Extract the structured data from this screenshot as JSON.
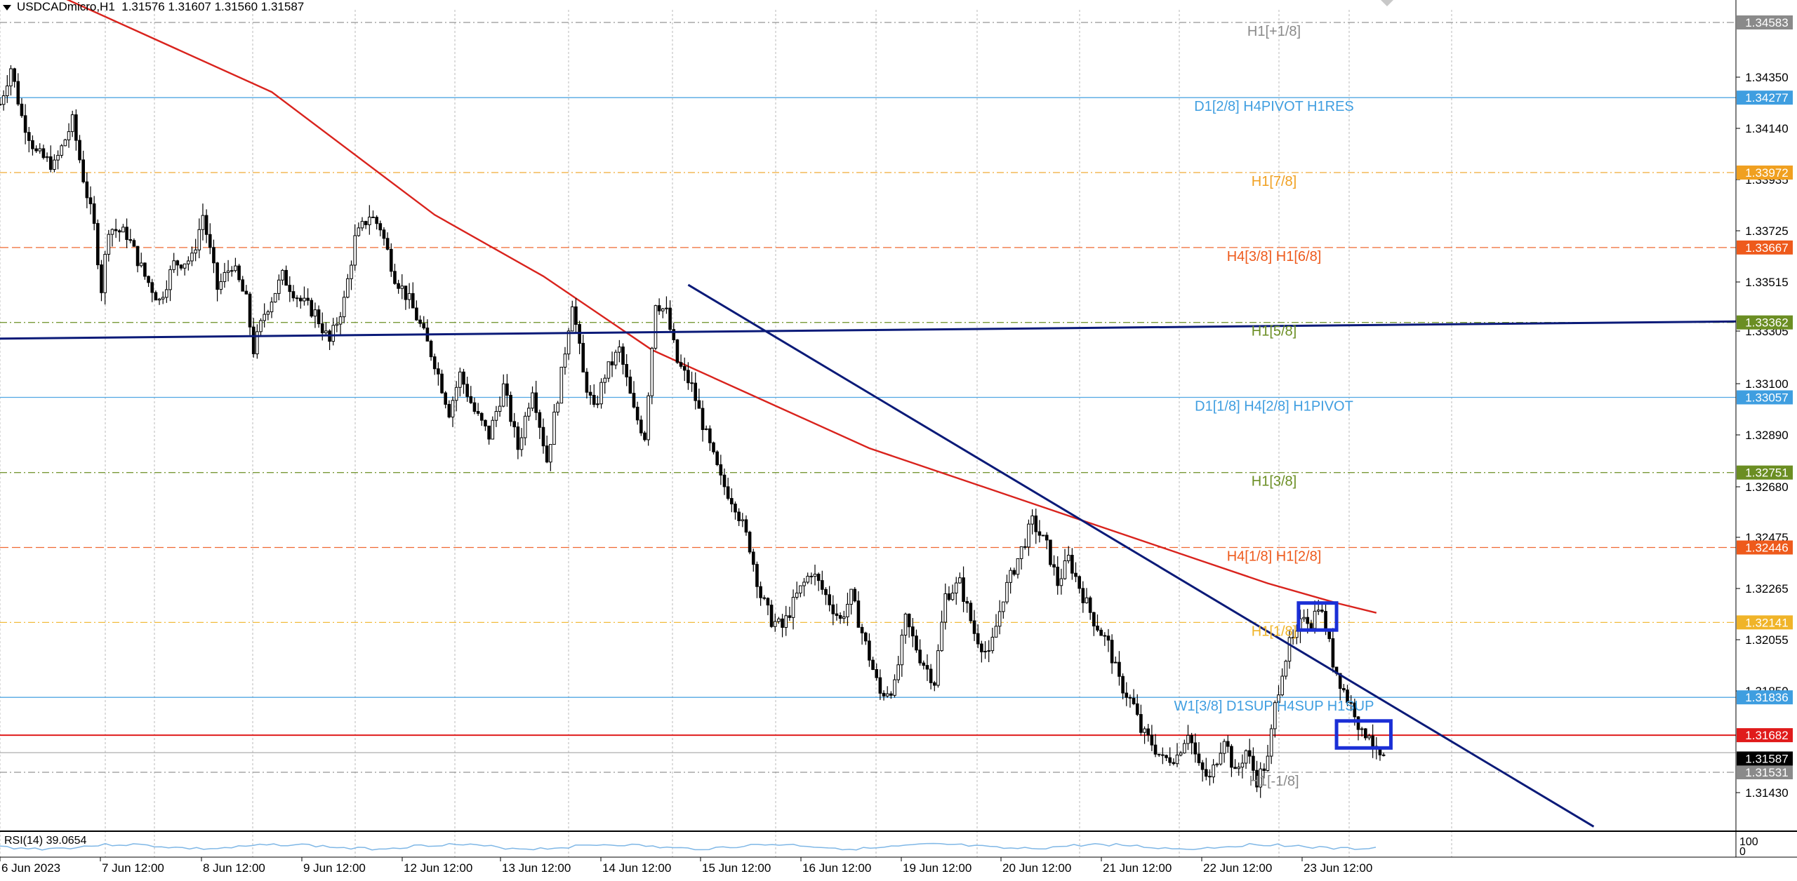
{
  "header": {
    "symbol": "USDCADmicro,H1",
    "ohlc": "1.31576 1.31607 1.31560 1.31587"
  },
  "rsi": {
    "label": "RSI(14) 39.0654",
    "scale_top": "100",
    "scale_bottom": "0"
  },
  "colors": {
    "axis": "#000000",
    "grid": "#b8b8b8",
    "candle": "#000000",
    "ma": "#d9231d",
    "trendline": "#0a1a78",
    "box": "#1b2fd6",
    "support_line": "#e01b1b",
    "rsi_line": "#7fb7e6"
  },
  "chart_data": {
    "type": "candlestick",
    "ylim": [
      1.3131,
      1.3466
    ],
    "price_axis_ticks": [
      "1.34350",
      "1.34140",
      "1.33935",
      "1.33725",
      "1.33515",
      "1.33305",
      "1.33100",
      "1.32890",
      "1.32680",
      "1.32475",
      "1.32265",
      "1.32055",
      "1.31850",
      "1.31430"
    ],
    "time_axis_labels": [
      "6 Jun 2023",
      "7 Jun 12:00",
      "8 Jun 12:00",
      "9 Jun 12:00",
      "12 Jun 12:00",
      "13 Jun 12:00",
      "14 Jun 12:00",
      "15 Jun 12:00",
      "16 Jun 12:00",
      "19 Jun 12:00",
      "20 Jun 12:00",
      "21 Jun 12:00",
      "22 Jun 12:00",
      "23 Jun 12:00"
    ],
    "level_lines": [
      {
        "label": "H1[+1/8]",
        "price": 1.34583,
        "tag": "1.34583",
        "color": "#8a8a8a",
        "style": "dashdot"
      },
      {
        "label": "D1[2/8] H4PIVOT H1RES",
        "price": 1.34277,
        "tag": "1.34277",
        "color": "#3f9ee0",
        "style": "solid"
      },
      {
        "label": "H1[7/8]",
        "price": 1.33972,
        "tag": "1.33972",
        "color": "#f0a020",
        "style": "dashdot"
      },
      {
        "label": "H4[3/8] H1[6/8]",
        "price": 1.33667,
        "tag": "1.33667",
        "color": "#ee5a1c",
        "style": "dash"
      },
      {
        "label": "H1[5/8]",
        "price": 1.33362,
        "tag": "1.33362",
        "color": "#6b8e23",
        "style": "dashdot"
      },
      {
        "label": "D1[1/8] H4[2/8] H1PIVOT",
        "price": 1.33057,
        "tag": "1.33057",
        "color": "#3f9ee0",
        "style": "solid"
      },
      {
        "label": "H1[3/8]",
        "price": 1.32751,
        "tag": "1.32751",
        "color": "#6b8e23",
        "style": "dashdot"
      },
      {
        "label": "H4[1/8] H1[2/8]",
        "price": 1.32446,
        "tag": "1.32446",
        "color": "#ee5a1c",
        "style": "dash"
      },
      {
        "label": "H1[1/8]",
        "price": 1.32141,
        "tag": "1.32141",
        "color": "#f0b429",
        "style": "dashdot"
      },
      {
        "label": "W1[3/8] D1SUP H4SUP H1SUP",
        "price": 1.31836,
        "tag": "1.31836",
        "color": "#3f9ee0",
        "style": "solid"
      },
      {
        "label": "H1[-1/8]",
        "price": 1.31531,
        "tag": "1.31531",
        "color": "#8a8a8a",
        "style": "dashdot"
      }
    ],
    "support_level": {
      "price": 1.31682,
      "tag": "1.31682"
    },
    "current_price": {
      "price": 1.31587,
      "tag": "1.31587"
    },
    "grey_level": 1.31611,
    "candles_close_path": [
      [
        0,
        1.3425
      ],
      [
        6,
        1.344
      ],
      [
        12,
        1.342
      ],
      [
        20,
        1.3405
      ],
      [
        30,
        1.34
      ],
      [
        40,
        1.3418
      ],
      [
        46,
        1.3395
      ],
      [
        52,
        1.3375
      ],
      [
        56,
        1.335
      ],
      [
        60,
        1.3375
      ],
      [
        70,
        1.3372
      ],
      [
        80,
        1.3355
      ],
      [
        88,
        1.3345
      ],
      [
        96,
        1.336
      ],
      [
        106,
        1.3362
      ],
      [
        112,
        1.338
      ],
      [
        120,
        1.335
      ],
      [
        128,
        1.336
      ],
      [
        136,
        1.3345
      ],
      [
        140,
        1.3325
      ],
      [
        146,
        1.334
      ],
      [
        156,
        1.3355
      ],
      [
        166,
        1.3345
      ],
      [
        174,
        1.334
      ],
      [
        182,
        1.3328
      ],
      [
        190,
        1.3345
      ],
      [
        196,
        1.337
      ],
      [
        204,
        1.338
      ],
      [
        210,
        1.3375
      ],
      [
        218,
        1.3355
      ],
      [
        226,
        1.3345
      ],
      [
        232,
        1.3335
      ],
      [
        240,
        1.332
      ],
      [
        248,
        1.33
      ],
      [
        254,
        1.3315
      ],
      [
        262,
        1.33
      ],
      [
        270,
        1.329
      ],
      [
        278,
        1.331
      ],
      [
        286,
        1.3285
      ],
      [
        294,
        1.331
      ],
      [
        302,
        1.328
      ],
      [
        310,
        1.3315
      ],
      [
        316,
        1.3345
      ],
      [
        322,
        1.3315
      ],
      [
        328,
        1.33
      ],
      [
        334,
        1.3315
      ],
      [
        342,
        1.3325
      ],
      [
        350,
        1.33
      ],
      [
        356,
        1.329
      ],
      [
        362,
        1.3345
      ],
      [
        368,
        1.334
      ],
      [
        374,
        1.332
      ],
      [
        382,
        1.331
      ],
      [
        390,
        1.329
      ],
      [
        398,
        1.3272
      ],
      [
        406,
        1.3262
      ],
      [
        414,
        1.3245
      ],
      [
        420,
        1.3225
      ],
      [
        426,
        1.3215
      ],
      [
        432,
        1.3212
      ],
      [
        440,
        1.3225
      ],
      [
        448,
        1.3235
      ],
      [
        456,
        1.3225
      ],
      [
        464,
        1.3215
      ],
      [
        470,
        1.3225
      ],
      [
        478,
        1.3205
      ],
      [
        486,
        1.3185
      ],
      [
        494,
        1.3188
      ],
      [
        500,
        1.3215
      ],
      [
        508,
        1.32
      ],
      [
        516,
        1.319
      ],
      [
        522,
        1.3225
      ],
      [
        530,
        1.323
      ],
      [
        538,
        1.321
      ],
      [
        546,
        1.32
      ],
      [
        554,
        1.3225
      ],
      [
        562,
        1.324
      ],
      [
        570,
        1.3255
      ],
      [
        578,
        1.3245
      ],
      [
        584,
        1.323
      ],
      [
        590,
        1.324
      ],
      [
        598,
        1.3225
      ],
      [
        604,
        1.3215
      ],
      [
        612,
        1.3205
      ],
      [
        618,
        1.319
      ],
      [
        626,
        1.318
      ],
      [
        630,
        1.317
      ],
      [
        636,
        1.3165
      ],
      [
        642,
        1.3158
      ],
      [
        650,
        1.316
      ],
      [
        656,
        1.317
      ],
      [
        662,
        1.3155
      ],
      [
        668,
        1.315
      ],
      [
        676,
        1.3168
      ],
      [
        682,
        1.3152
      ],
      [
        688,
        1.3162
      ],
      [
        694,
        1.315
      ],
      [
        700,
        1.3158
      ],
      [
        704,
        1.318
      ],
      [
        708,
        1.3195
      ],
      [
        712,
        1.3205
      ],
      [
        716,
        1.3208
      ],
      [
        720,
        1.3218
      ],
      [
        724,
        1.3214
      ],
      [
        728,
        1.3222
      ],
      [
        732,
        1.3212
      ],
      [
        736,
        1.3198
      ],
      [
        740,
        1.319
      ],
      [
        744,
        1.3183
      ],
      [
        748,
        1.3178
      ],
      [
        752,
        1.3168
      ],
      [
        756,
        1.317
      ],
      [
        760,
        1.316
      ],
      [
        764,
        1.3158
      ]
    ],
    "moving_average": [
      [
        0,
        1.348
      ],
      [
        150,
        1.343
      ],
      [
        240,
        1.338
      ],
      [
        300,
        1.3355
      ],
      [
        360,
        1.3325
      ],
      [
        420,
        1.3305
      ],
      [
        480,
        1.3285
      ],
      [
        540,
        1.327
      ],
      [
        600,
        1.3255
      ],
      [
        660,
        1.324
      ],
      [
        700,
        1.323
      ],
      [
        738,
        1.3222
      ],
      [
        760,
        1.3218
      ]
    ],
    "trendlines": [
      {
        "from": [
          0,
          1.33296
        ],
        "to": [
          960,
          1.33366
        ]
      },
      {
        "from": [
          380,
          1.33515
        ],
        "to": [
          880,
          1.3131
        ]
      }
    ],
    "boxes": [
      {
        "from": [
          717,
          1.3222
        ],
        "to": [
          738,
          1.3211
        ]
      },
      {
        "from": [
          738,
          1.3174
        ],
        "to": [
          768,
          1.3163
        ]
      }
    ]
  }
}
